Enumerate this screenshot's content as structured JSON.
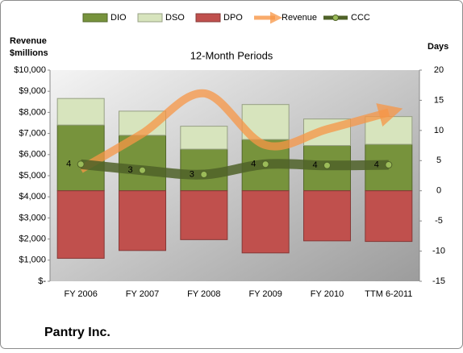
{
  "chart_data": {
    "type": "combo",
    "title": "12-Month Periods",
    "ylabel": [
      "Revenue",
      "$millions"
    ],
    "y2label": "Days",
    "footer": "Pantry Inc.",
    "categories": [
      "FY 2006",
      "FY 2007",
      "FY 2008",
      "FY 2009",
      "FY 2010",
      "TTM 6-2011"
    ],
    "series": [
      {
        "name": "DIO",
        "type": "bar",
        "axis": "y2",
        "color": "#77933c",
        "values": [
          10.9,
          9.2,
          6.9,
          8.5,
          7.5,
          7.7
        ]
      },
      {
        "name": "DSO",
        "type": "bar",
        "axis": "y2",
        "color": "#d7e4bd",
        "values": [
          4.4,
          4.0,
          3.8,
          5.8,
          4.4,
          4.6
        ]
      },
      {
        "name": "DPO",
        "type": "bar",
        "axis": "y2",
        "color": "#c0504d",
        "values": [
          -11.2,
          -9.9,
          -8.1,
          -10.3,
          -8.3,
          -8.4
        ]
      },
      {
        "name": "Revenue",
        "type": "arrow",
        "axis": "y",
        "color": "#f79646",
        "values": [
          5300,
          7000,
          8900,
          6450,
          7200,
          8000
        ]
      },
      {
        "name": "CCC",
        "type": "line",
        "axis": "y2",
        "color": "#4f6228",
        "values": [
          4.4,
          3.4,
          2.7,
          4.4,
          4.2,
          4.3
        ],
        "value_labels": [
          "4",
          "3",
          "3",
          "4",
          "4",
          "4"
        ]
      }
    ],
    "ylim": [
      0,
      10000
    ],
    "yticks": [
      {
        "value": 0,
        "label": "$-"
      },
      {
        "value": 1000,
        "label": "$1,000"
      },
      {
        "value": 2000,
        "label": "$2,000"
      },
      {
        "value": 3000,
        "label": "$3,000"
      },
      {
        "value": 4000,
        "label": "$4,000"
      },
      {
        "value": 5000,
        "label": "$5,000"
      },
      {
        "value": 6000,
        "label": "$6,000"
      },
      {
        "value": 7000,
        "label": "$7,000"
      },
      {
        "value": 8000,
        "label": "$8,000"
      },
      {
        "value": 9000,
        "label": "$9,000"
      },
      {
        "value": 10000,
        "label": "$10,000"
      }
    ],
    "y2lim": [
      -15,
      20
    ],
    "y2ticks": [
      -15,
      -10,
      -5,
      0,
      5,
      10,
      15,
      20
    ],
    "legend": "top"
  }
}
